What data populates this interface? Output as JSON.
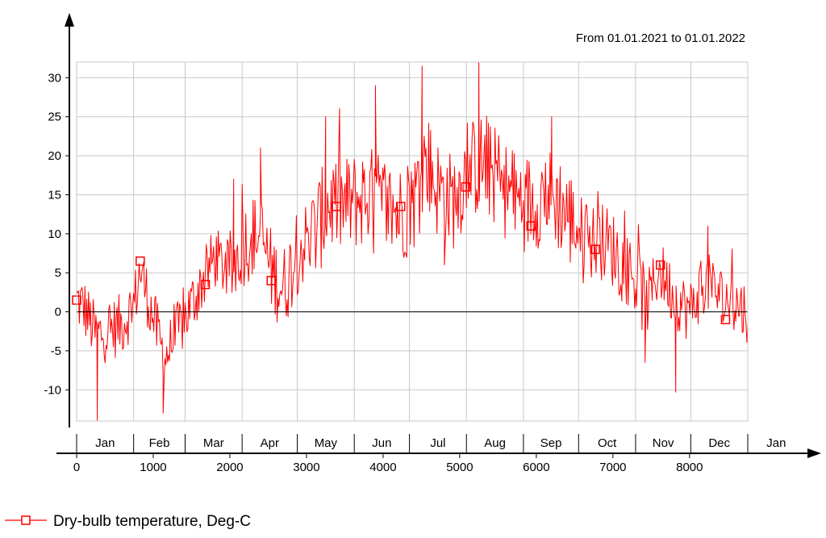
{
  "chart_data": {
    "type": "line",
    "title": "",
    "subtitle": "From 01.01.2021 to 01.01.2022",
    "xlabel": "",
    "ylabel": "",
    "xlim": [
      0,
      8760
    ],
    "ylim": [
      -14,
      32
    ],
    "x_ticks": [
      0,
      1000,
      2000,
      3000,
      4000,
      5000,
      6000,
      7000,
      8000
    ],
    "y_ticks": [
      -10,
      -5,
      0,
      5,
      10,
      15,
      20,
      25,
      30
    ],
    "months": [
      "Jan",
      "Feb",
      "Mar",
      "Apr",
      "May",
      "Jun",
      "Jul",
      "Aug",
      "Sep",
      "Oct",
      "Nov",
      "Dec",
      "Jan"
    ],
    "grid": true,
    "legend_position": "bottom-left",
    "colors": {
      "series": "#ff0000",
      "grid": "#c8c8c8",
      "axis": "#000000"
    },
    "series": [
      {
        "name": "Dry-bulb temperature, Deg-C",
        "marker": "square",
        "markers": [
          {
            "x": 0,
            "y": 1.5
          },
          {
            "x": 830,
            "y": 6.5
          },
          {
            "x": 1680,
            "y": 3.5
          },
          {
            "x": 2540,
            "y": 4.0
          },
          {
            "x": 3390,
            "y": 13.5
          },
          {
            "x": 4230,
            "y": 13.5
          },
          {
            "x": 5080,
            "y": 16.0
          },
          {
            "x": 5930,
            "y": 11.0
          },
          {
            "x": 6770,
            "y": 8.0
          },
          {
            "x": 7620,
            "y": 6.0
          },
          {
            "x": 8470,
            "y": -1.0
          }
        ],
        "trend": [
          {
            "x": 0,
            "y": 1.5
          },
          {
            "x": 100,
            "y": 0.5
          },
          {
            "x": 250,
            "y": -3.0
          },
          {
            "x": 400,
            "y": -2.5
          },
          {
            "x": 600,
            "y": -1.5
          },
          {
            "x": 750,
            "y": 1.0
          },
          {
            "x": 830,
            "y": 5.5
          },
          {
            "x": 950,
            "y": 1.0
          },
          {
            "x": 1150,
            "y": -6.0
          },
          {
            "x": 1300,
            "y": -3.0
          },
          {
            "x": 1450,
            "y": 0.0
          },
          {
            "x": 1600,
            "y": 3.0
          },
          {
            "x": 1800,
            "y": 7.0
          },
          {
            "x": 2000,
            "y": 5.0
          },
          {
            "x": 2200,
            "y": 9.0
          },
          {
            "x": 2400,
            "y": 10.0
          },
          {
            "x": 2550,
            "y": 5.0
          },
          {
            "x": 2700,
            "y": 3.0
          },
          {
            "x": 2900,
            "y": 8.0
          },
          {
            "x": 3100,
            "y": 10.0
          },
          {
            "x": 3300,
            "y": 14.0
          },
          {
            "x": 3500,
            "y": 13.5
          },
          {
            "x": 3800,
            "y": 15.0
          },
          {
            "x": 4000,
            "y": 14.0
          },
          {
            "x": 4200,
            "y": 12.5
          },
          {
            "x": 4400,
            "y": 14.0
          },
          {
            "x": 4550,
            "y": 20.0
          },
          {
            "x": 4700,
            "y": 16.0
          },
          {
            "x": 4900,
            "y": 14.0
          },
          {
            "x": 5100,
            "y": 18.0
          },
          {
            "x": 5300,
            "y": 19.0
          },
          {
            "x": 5500,
            "y": 17.0
          },
          {
            "x": 5700,
            "y": 14.5
          },
          {
            "x": 5900,
            "y": 14.0
          },
          {
            "x": 6100,
            "y": 15.0
          },
          {
            "x": 6300,
            "y": 14.0
          },
          {
            "x": 6500,
            "y": 11.0
          },
          {
            "x": 6700,
            "y": 9.0
          },
          {
            "x": 6900,
            "y": 9.0
          },
          {
            "x": 7100,
            "y": 7.0
          },
          {
            "x": 7300,
            "y": 4.0
          },
          {
            "x": 7450,
            "y": 1.0
          },
          {
            "x": 7600,
            "y": 5.5
          },
          {
            "x": 7800,
            "y": 2.0
          },
          {
            "x": 8000,
            "y": 0.0
          },
          {
            "x": 8200,
            "y": 4.0
          },
          {
            "x": 8400,
            "y": 2.0
          },
          {
            "x": 8600,
            "y": 1.0
          },
          {
            "x": 8760,
            "y": 0.0
          }
        ],
        "extremes": [
          {
            "x": 270,
            "y": -13.9
          },
          {
            "x": 1130,
            "y": -13.0
          },
          {
            "x": 2050,
            "y": 17.0
          },
          {
            "x": 2400,
            "y": 21.0
          },
          {
            "x": 3250,
            "y": 25.0
          },
          {
            "x": 3900,
            "y": 29.0
          },
          {
            "x": 4510,
            "y": 31.5
          },
          {
            "x": 5250,
            "y": 32.0
          },
          {
            "x": 4800,
            "y": 6.0
          },
          {
            "x": 6200,
            "y": 25.0
          },
          {
            "x": 7420,
            "y": -6.5
          },
          {
            "x": 7820,
            "y": -10.3
          },
          {
            "x": 8240,
            "y": 11.0
          }
        ]
      }
    ]
  }
}
